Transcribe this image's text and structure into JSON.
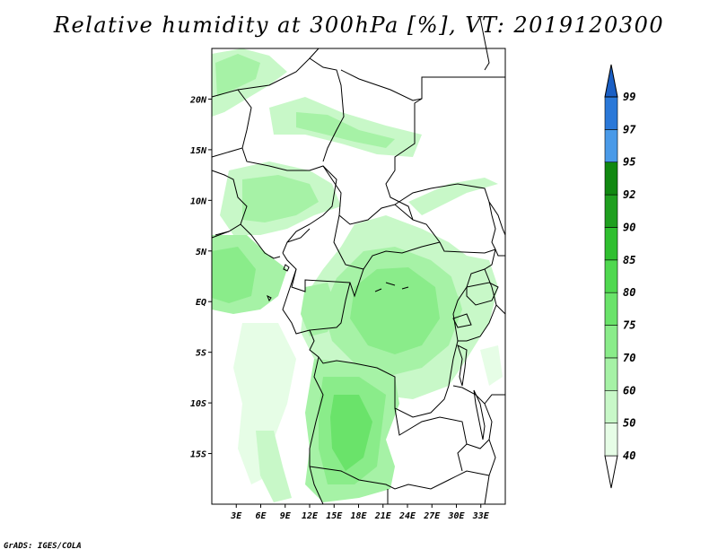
{
  "title": "Relative humidity at 300hPa [%], VT: 2019120300",
  "credit": "GrADS: IGES/COLA",
  "map": {
    "lon_range": [
      0,
      36
    ],
    "lat_range": [
      -20,
      25
    ],
    "lat_ticks": [
      {
        "value": 20,
        "label": "20N"
      },
      {
        "value": 15,
        "label": "15N"
      },
      {
        "value": 10,
        "label": "10N"
      },
      {
        "value": 5,
        "label": "5N"
      },
      {
        "value": 0,
        "label": "EQ"
      },
      {
        "value": -5,
        "label": "5S"
      },
      {
        "value": -10,
        "label": "10S"
      },
      {
        "value": -15,
        "label": "15S"
      }
    ],
    "lon_ticks": [
      {
        "value": 3,
        "label": "3E"
      },
      {
        "value": 6,
        "label": "6E"
      },
      {
        "value": 9,
        "label": "9E"
      },
      {
        "value": 12,
        "label": "12E"
      },
      {
        "value": 15,
        "label": "15E"
      },
      {
        "value": 18,
        "label": "18E"
      },
      {
        "value": 21,
        "label": "21E"
      },
      {
        "value": 24,
        "label": "24E"
      },
      {
        "value": 27,
        "label": "27E"
      },
      {
        "value": 30,
        "label": "30E"
      },
      {
        "value": 33,
        "label": "33E"
      }
    ]
  },
  "colorbar": {
    "levels": [
      "40",
      "50",
      "60",
      "70",
      "75",
      "80",
      "85",
      "90",
      "92",
      "95",
      "97",
      "99"
    ],
    "colors": [
      "#ffffff",
      "#e6fde6",
      "#c8f8c8",
      "#a6f2a6",
      "#8aec8a",
      "#6ae36a",
      "#4fd84f",
      "#2fbf2f",
      "#1f9f1f",
      "#118811",
      "#4a9ae8",
      "#2a78d8",
      "#1a5fc4"
    ]
  }
}
